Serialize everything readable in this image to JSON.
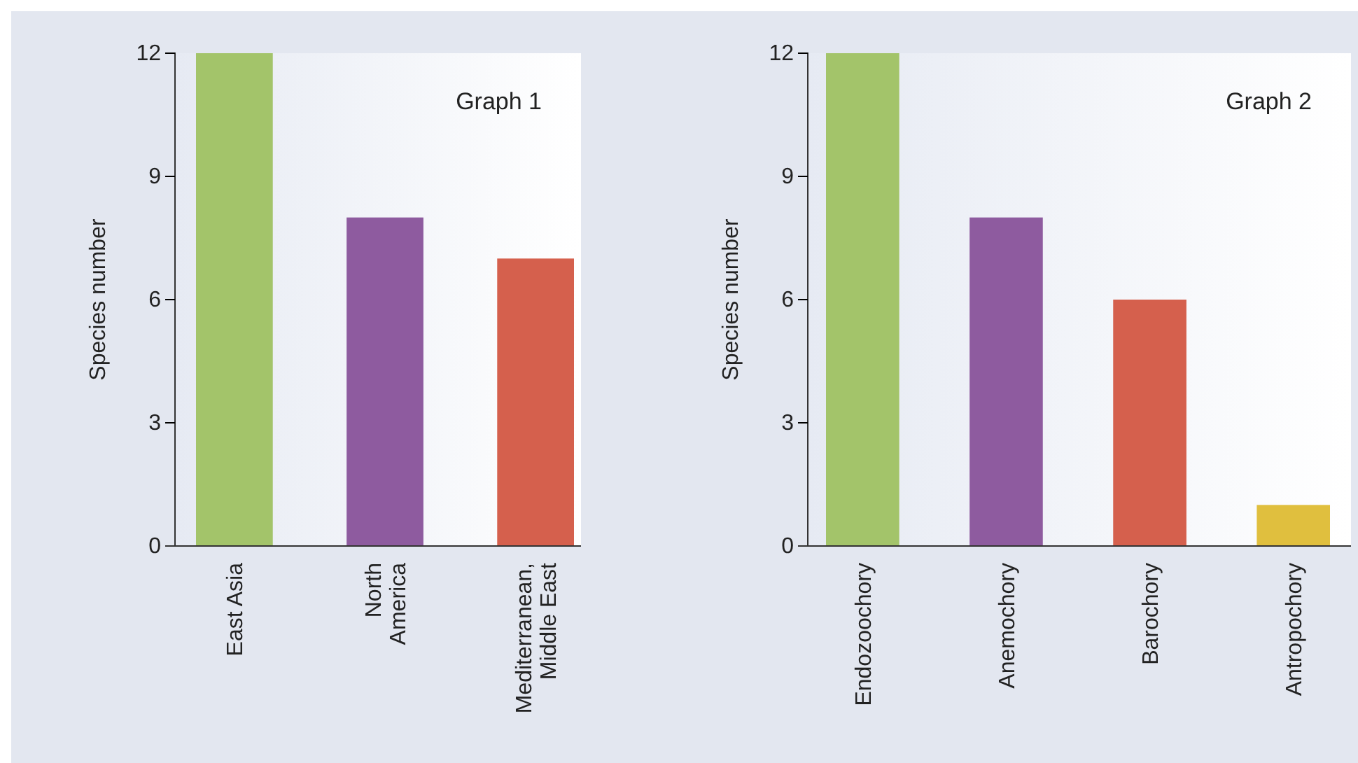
{
  "chart_data": [
    {
      "type": "bar",
      "categories": [
        "East Asia",
        "North\nAmerica",
        "Mediterranean,\nMiddle East"
      ],
      "values": [
        12,
        8,
        7
      ],
      "colors": [
        "#a3c46a",
        "#8e5b9f",
        "#d5604d"
      ],
      "ylabel": "Species number",
      "ylim": [
        0,
        12
      ],
      "yticks": [
        0,
        3,
        6,
        9,
        12
      ],
      "annotations": [
        "Graph 1"
      ]
    },
    {
      "type": "bar",
      "categories": [
        "Endozoochory",
        "Anemochory",
        "Barochory",
        "Antropochory"
      ],
      "values": [
        12,
        8,
        6,
        1
      ],
      "colors": [
        "#a3c46a",
        "#8e5b9f",
        "#d5604d",
        "#e0bf3e"
      ],
      "ylabel": "Species number",
      "ylim": [
        0,
        12
      ],
      "yticks": [
        0,
        3,
        6,
        9,
        12
      ],
      "annotations": [
        "Graph 2"
      ]
    }
  ]
}
